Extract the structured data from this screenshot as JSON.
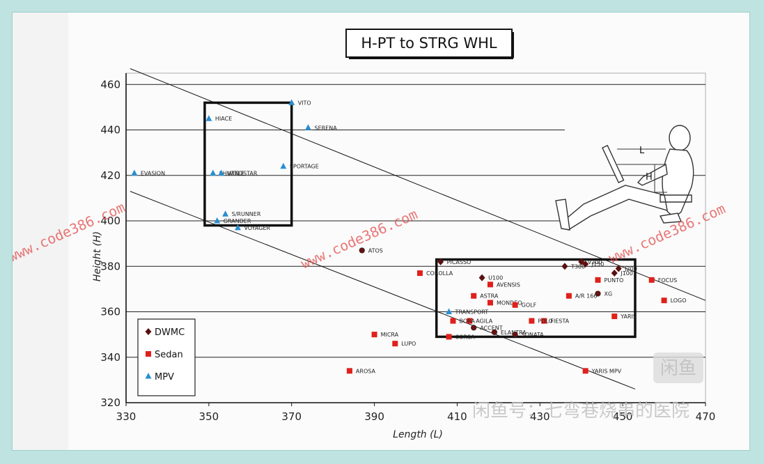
{
  "chart_data": {
    "type": "scatter",
    "title": "H-PT to STRG WHL",
    "xlabel": "Length (L)",
    "ylabel": "Height (H)",
    "xlim": [
      330,
      470
    ],
    "ylim": [
      320,
      465
    ],
    "xticks": [
      330,
      350,
      370,
      390,
      410,
      430,
      450,
      470
    ],
    "yticks": [
      320,
      340,
      360,
      380,
      400,
      420,
      440,
      460
    ],
    "legend_position": "bottom-left",
    "series": [
      {
        "name": "DWMC",
        "marker": "diamond",
        "color": "#5a1010",
        "points": [
          {
            "label": "PICASSO",
            "x": 406,
            "y": 382
          },
          {
            "label": "T300",
            "x": 436,
            "y": 380
          },
          {
            "label": "U100",
            "x": 416,
            "y": 375
          },
          {
            "label": "V200",
            "x": 440,
            "y": 382
          },
          {
            "label": "J150",
            "x": 441,
            "y": 381
          },
          {
            "label": "J200",
            "x": 449,
            "y": 379
          },
          {
            "label": "J100",
            "x": 448,
            "y": 377
          }
        ]
      },
      {
        "name": "",
        "marker": "circle",
        "color": "#6b1010",
        "points": [
          {
            "label": "ATOS",
            "x": 387,
            "y": 387
          },
          {
            "label": "XG",
            "x": 444,
            "y": 368
          },
          {
            "label": "ACCENT",
            "x": 414,
            "y": 353
          },
          {
            "label": "ELANTRA",
            "x": 419,
            "y": 351
          },
          {
            "label": "SONATA",
            "x": 424,
            "y": 350
          }
        ]
      },
      {
        "name": "Sedan",
        "marker": "square",
        "color": "#e0201a",
        "points": [
          {
            "label": "COROLLA",
            "x": 401,
            "y": 377
          },
          {
            "label": "AVENSIS",
            "x": 418,
            "y": 372
          },
          {
            "label": "ASTRA",
            "x": 414,
            "y": 367
          },
          {
            "label": "MONDEO",
            "x": 418,
            "y": 364
          },
          {
            "label": "GOLF",
            "x": 424,
            "y": 363
          },
          {
            "label": "A/R 166",
            "x": 437,
            "y": 367
          },
          {
            "label": "PUNTO",
            "x": 444,
            "y": 374
          },
          {
            "label": "FOCUS",
            "x": 457,
            "y": 374
          },
          {
            "label": "LOGO",
            "x": 460,
            "y": 365
          },
          {
            "label": "YARIS",
            "x": 448,
            "y": 358
          },
          {
            "label": "FIESTA",
            "x": 431,
            "y": 356
          },
          {
            "label": "POLO",
            "x": 428,
            "y": 356
          },
          {
            "label": "AGILA",
            "x": 413,
            "y": 356
          },
          {
            "label": "BORA",
            "x": 409,
            "y": 356
          },
          {
            "label": "CORSA",
            "x": 408,
            "y": 349
          },
          {
            "label": "MICRA",
            "x": 390,
            "y": 350
          },
          {
            "label": "LUPO",
            "x": 395,
            "y": 346
          },
          {
            "label": "AROSA",
            "x": 384,
            "y": 334
          },
          {
            "label": "YARIS MPV",
            "x": 441,
            "y": 334
          }
        ]
      },
      {
        "name": "MPV",
        "marker": "triangle",
        "color": "#2a8fd0",
        "points": [
          {
            "label": "VITO",
            "x": 370,
            "y": 452
          },
          {
            "label": "HIACE",
            "x": 350,
            "y": 445
          },
          {
            "label": "SERENA",
            "x": 374,
            "y": 441
          },
          {
            "label": "SPORTAGE",
            "x": 368,
            "y": 424
          },
          {
            "label": "SHUTTLE",
            "x": 351,
            "y": 421
          },
          {
            "label": "WINDSTAR",
            "x": 353,
            "y": 421
          },
          {
            "label": "EVASION",
            "x": 332,
            "y": 421
          },
          {
            "label": "S/RUNNER",
            "x": 354,
            "y": 403
          },
          {
            "label": "GRANDER",
            "x": 352,
            "y": 400
          },
          {
            "label": "VOYAGER",
            "x": 357,
            "y": 397
          },
          {
            "label": "TRANSPORT",
            "x": 408,
            "y": 360
          }
        ]
      }
    ],
    "lines": [
      {
        "x1": 331,
        "y1": 467,
        "x2": 470,
        "y2": 365
      },
      {
        "x1": 331,
        "y1": 413,
        "x2": 453,
        "y2": 326
      }
    ],
    "boxes": [
      {
        "x1": 349,
        "y1": 398,
        "x2": 370,
        "y2": 452
      },
      {
        "x1": 405,
        "y1": 349,
        "x2": 453,
        "y2": 383
      }
    ]
  },
  "legend": {
    "items": [
      {
        "name": "DWMC",
        "marker": "diamond",
        "color": "#5a1010"
      },
      {
        "name": "Sedan",
        "marker": "square",
        "color": "#e0201a"
      },
      {
        "name": "MPV",
        "marker": "triangle",
        "color": "#2a8fd0"
      }
    ]
  },
  "diagram": {
    "label_l": "L",
    "label_h": "H"
  },
  "watermark": {
    "site": "www.code386.com",
    "wechat": "闲鱼号：七弯巷烧串的医院",
    "badge": "闲鱼"
  },
  "colors": {
    "grid": "#222222",
    "frame_background": "#bfe3e0"
  }
}
